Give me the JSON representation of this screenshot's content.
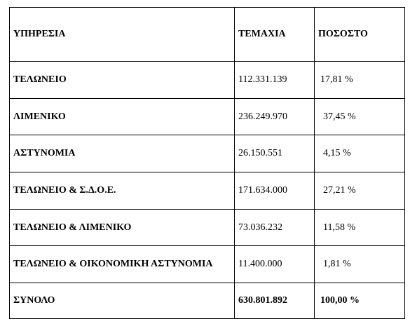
{
  "table": {
    "headers": {
      "service": "ΥΠΗΡΕΣΙΑ",
      "pieces": "ΤΕΜΑΧΙΑ",
      "percent": "ΠΟΣΟΣΤΟ"
    },
    "rows": [
      {
        "service": "ΤΕΛΩΝΕΙΟ",
        "pieces": "112.331.139",
        "percent": "17,81 %"
      },
      {
        "service": "ΛΙΜΕΝΙΚΟ",
        "pieces": "236.249.970",
        "percent": "37,45 %"
      },
      {
        "service": "ΑΣΤΥΝΟΜΙΑ",
        "pieces": "26.150.551",
        "percent": "4,15 %"
      },
      {
        "service": "ΤΕΛΩΝΕΙΟ & Σ.Δ.Ο.Ε.",
        "pieces": "171.634.000",
        "percent": "27,21 %"
      },
      {
        "service": "ΤΕΛΩΝΕΙΟ & ΛΙΜΕΝΙΚΟ",
        "pieces": "73.036.232",
        "percent": "11,58 %"
      },
      {
        "service": "ΤΕΛΩΝΕΙΟ & ΟΙΚΟΝΟΜΙΚΗ ΑΣΤΥΝΟΜΙΑ",
        "pieces": "11.400.000",
        "percent": "1,81 %"
      }
    ],
    "total": {
      "service": "ΣΥΝΟΛΟ",
      "pieces": "630.801.892",
      "percent": "100,00 %"
    }
  }
}
